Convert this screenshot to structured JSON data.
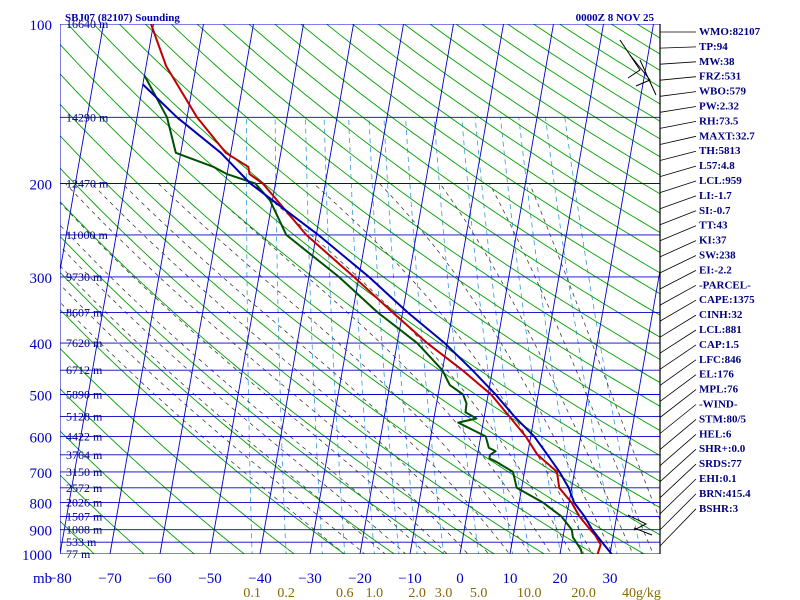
{
  "chart_data": {
    "type": "skew-t",
    "title": "SBJ07 (82107) Sounding",
    "datetime": "0000Z  8 NOV 25",
    "pressure_axis": {
      "unit": "mb",
      "levels": [
        100,
        200,
        300,
        400,
        500,
        600,
        700,
        800,
        900,
        1000
      ],
      "range": [
        100,
        1000
      ],
      "scale": "log"
    },
    "temperature_axis": {
      "unit": "°C",
      "ticks": [
        -80,
        -70,
        -60,
        -50,
        -40,
        -30,
        -20,
        -10,
        0,
        10,
        20,
        30
      ],
      "range": [
        -80,
        40
      ]
    },
    "mixing_ratio_axis": {
      "unit": "g/kg",
      "ticks": [
        "0.1",
        "0.2",
        "0.6",
        "1.0",
        "2.0",
        "3.0",
        "5.0",
        "10.0",
        "20.0",
        "40g/kg"
      ]
    },
    "height_labels": [
      {
        "p": 100,
        "label": "16640 m"
      },
      {
        "p": 150,
        "label": "14290 m"
      },
      {
        "p": 200,
        "label": "12470 m"
      },
      {
        "p": 250,
        "label": "11000 m"
      },
      {
        "p": 300,
        "label": "9730 m"
      },
      {
        "p": 350,
        "label": "8607 m"
      },
      {
        "p": 400,
        "label": "7620 m"
      },
      {
        "p": 450,
        "label": "6712 m"
      },
      {
        "p": 500,
        "label": "5890 m"
      },
      {
        "p": 550,
        "label": "5128 m"
      },
      {
        "p": 600,
        "label": "4422 m"
      },
      {
        "p": 650,
        "label": "3764 m"
      },
      {
        "p": 700,
        "label": "3150 m"
      },
      {
        "p": 750,
        "label": "2572 m"
      },
      {
        "p": 800,
        "label": "2026 m"
      },
      {
        "p": 850,
        "label": "1507 m"
      },
      {
        "p": 900,
        "label": "1008 m"
      },
      {
        "p": 950,
        "label": "533 m"
      },
      {
        "p": 1000,
        "label": "77 m"
      }
    ],
    "series": [
      {
        "name": "Temperature",
        "color": "#c00000",
        "points": [
          [
            100,
            -80.5
          ],
          [
            120,
            -76
          ],
          [
            150,
            -68
          ],
          [
            175,
            -61
          ],
          [
            186,
            -56
          ],
          [
            192,
            -55.5
          ],
          [
            200,
            -52.5
          ],
          [
            250,
            -42
          ],
          [
            300,
            -31
          ],
          [
            350,
            -22
          ],
          [
            400,
            -14
          ],
          [
            450,
            -6
          ],
          [
            500,
            0.6
          ],
          [
            550,
            5
          ],
          [
            600,
            9
          ],
          [
            650,
            12
          ],
          [
            700,
            16.5
          ],
          [
            750,
            17.5
          ],
          [
            800,
            20.5
          ],
          [
            850,
            22.6
          ],
          [
            900,
            25.2
          ],
          [
            920,
            26.3
          ],
          [
            960,
            27.8
          ],
          [
            1004,
            27.5
          ]
        ]
      },
      {
        "name": "Dewpoint",
        "color": "#005000",
        "points": [
          [
            125,
            -80
          ],
          [
            150,
            -74
          ],
          [
            175,
            -71
          ],
          [
            186,
            -63
          ],
          [
            192,
            -60
          ],
          [
            200,
            -54
          ],
          [
            215,
            -50.5
          ],
          [
            250,
            -46
          ],
          [
            300,
            -34
          ],
          [
            350,
            -25
          ],
          [
            400,
            -16
          ],
          [
            450,
            -10
          ],
          [
            480,
            -8
          ],
          [
            500,
            -5
          ],
          [
            520,
            -4
          ],
          [
            540,
            -3.9
          ],
          [
            555,
            -1.5
          ],
          [
            565,
            -5
          ],
          [
            600,
            1
          ],
          [
            630,
            2
          ],
          [
            640,
            3.5
          ],
          [
            650,
            2.5
          ],
          [
            660,
            2.5
          ],
          [
            670,
            4
          ],
          [
            700,
            7.7
          ],
          [
            750,
            9
          ],
          [
            800,
            14.8
          ],
          [
            850,
            19
          ],
          [
            900,
            21.5
          ],
          [
            930,
            22
          ],
          [
            980,
            24
          ],
          [
            1004,
            24.5
          ]
        ]
      },
      {
        "name": "Parcel",
        "color": "#0000b0",
        "points": [
          [
            130,
            -80
          ],
          [
            150,
            -72
          ],
          [
            175,
            -62
          ],
          [
            200,
            -55
          ],
          [
            250,
            -39.6
          ],
          [
            300,
            -28
          ],
          [
            350,
            -19
          ],
          [
            400,
            -10.5
          ],
          [
            450,
            -4
          ],
          [
            500,
            1.5
          ],
          [
            550,
            6
          ],
          [
            600,
            10.7
          ],
          [
            650,
            14
          ],
          [
            700,
            17
          ],
          [
            750,
            19.4
          ],
          [
            800,
            21
          ],
          [
            850,
            23.6
          ],
          [
            900,
            25.6
          ],
          [
            950,
            28
          ],
          [
            1004,
            30.5
          ]
        ]
      }
    ],
    "grid": true
  },
  "indices": [
    "WMO:82107",
    "TP:94",
    "MW:38",
    "FRZ:531",
    "WBO:579",
    "PW:2.32",
    "RH:73.5",
    "MAXT:32.7",
    "TH:5813",
    "L57:4.8",
    "LCL:959",
    "LI:-1.7",
    "SI:-0.7",
    "TT:43",
    "KI:37",
    "SW:238",
    "EI:-2.2",
    "-PARCEL-",
    "CAPE:1375",
    "CINH:32",
    "LCL:881",
    "CAP:1.5",
    "LFC:846",
    "EL:176",
    "MPL:76",
    "-WIND-",
    "STM:80/5",
    "HEL:6",
    "SHR+:0.0",
    "SRDS:77",
    "EHI:0.1",
    "BRN:415.4",
    "BSHR:3"
  ],
  "mb_label": "mb",
  "colors": {
    "isobar": "#0000c8",
    "dry_adiabat": "#00a000",
    "moist_adiabat": "#404040",
    "mixing_ratio": "#3399dd",
    "text": "#0000aa"
  }
}
